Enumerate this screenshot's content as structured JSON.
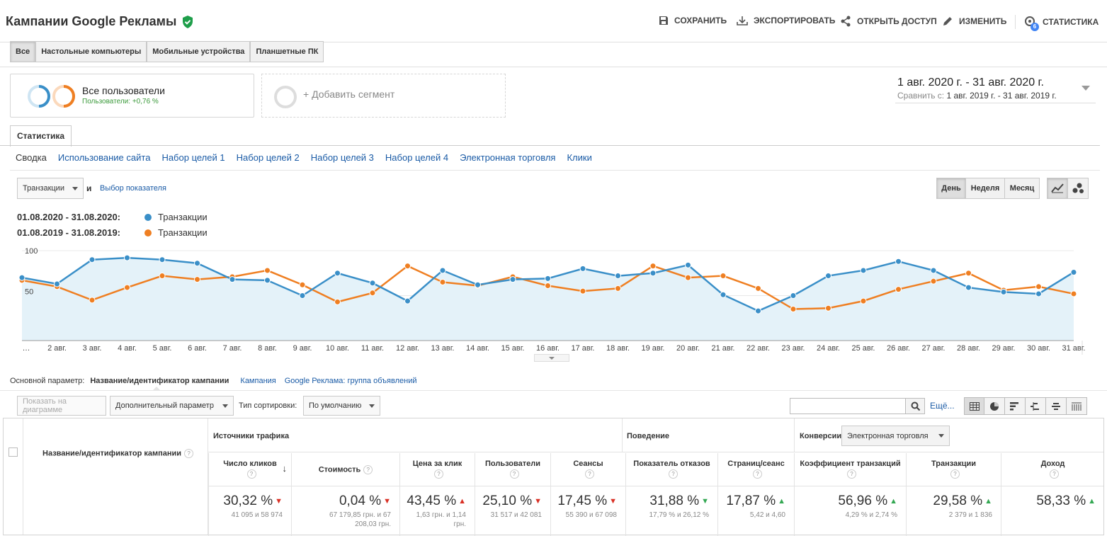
{
  "header": {
    "title": "Кампании Google Рекламы",
    "save": "Сохранить",
    "export": "Экспортировать",
    "share": "Открыть доступ",
    "edit": "Изменить",
    "stats": "Статистика",
    "stats_badge": "6"
  },
  "devices": [
    "Все",
    "Настольные компьютеры",
    "Мобильные устройства",
    "Планшетные ПК"
  ],
  "segment": {
    "name": "Все пользователи",
    "sub": "Пользователи: +0,76 %",
    "add": "+ Добавить сегмент"
  },
  "dates": {
    "range": "1 авг. 2020 г. - 31 авг. 2020 г.",
    "compare_label": "Сравнить с:",
    "compare": "1 авг. 2019 г. - 31 авг. 2019 г."
  },
  "tab": "Статистика",
  "subnav": [
    "Сводка",
    "Использование сайта",
    "Набор целей 1",
    "Набор целей 2",
    "Набор целей 3",
    "Набор целей 4",
    "Электронная торговля",
    "Клики"
  ],
  "metric": {
    "selected": "Транзакции",
    "and": "и",
    "choose": "Выбор показателя"
  },
  "granularity": [
    "День",
    "Неделя",
    "Месяц"
  ],
  "legend": [
    {
      "period": "01.08.2020 - 31.08.2020:",
      "name": "Транзакции",
      "color": "#3a8fc8"
    },
    {
      "period": "01.08.2019 - 31.08.2019:",
      "name": "Транзакции",
      "color": "#ef7f22"
    }
  ],
  "chart_data": {
    "type": "line",
    "ylim": [
      0,
      100
    ],
    "yticks": [
      "100",
      "50"
    ],
    "categories": [
      "…",
      "2 авг.",
      "3 авг.",
      "4 авг.",
      "5 авг.",
      "6 авг.",
      "7 авг.",
      "8 авг.",
      "9 авг.",
      "10 авг.",
      "11 авг.",
      "12 авг.",
      "13 авг.",
      "14 авг.",
      "15 авг.",
      "16 авг.",
      "17 авг.",
      "18 авг.",
      "19 авг.",
      "20 авг.",
      "21 авг.",
      "22 авг.",
      "23 авг.",
      "24 авг.",
      "25 авг.",
      "26 авг.",
      "27 авг.",
      "28 авг.",
      "29 авг.",
      "30 авг.",
      "31 авг."
    ],
    "series": [
      {
        "name": "Транзакции 2020",
        "values": [
          70,
          63,
          90,
          92,
          90,
          86,
          68,
          67,
          50,
          75,
          64,
          44,
          78,
          62,
          68,
          69,
          80,
          72,
          75,
          84,
          51,
          33,
          50,
          72,
          78,
          88,
          78,
          59,
          54,
          52,
          76
        ]
      },
      {
        "name": "Транзакции 2019",
        "values": [
          67,
          60,
          45,
          59,
          72,
          68,
          71,
          78,
          62,
          43,
          53,
          83,
          65,
          61,
          71,
          61,
          55,
          58,
          83,
          70,
          72,
          58,
          35,
          36,
          44,
          57,
          66,
          75,
          56,
          60,
          52
        ]
      }
    ]
  },
  "dimension": {
    "label": "Основной параметр:",
    "current": "Название/идентификатор кампании",
    "opt1": "Кампания",
    "opt2": "Google Реклама: группа объявлений"
  },
  "controls": {
    "plot": "Показать на диаграмме",
    "secondary": "Дополнительный параметр",
    "sort_label": "Тип сортировки:",
    "sort": "По умолчанию",
    "more": "Ещё..."
  },
  "table": {
    "col_name": "Название/идентификатор кампании",
    "g_traffic": "Источники трафика",
    "g_behavior": "Поведение",
    "g_conv": "Конверсии",
    "conv_select": "Электронная торговля",
    "columns": [
      {
        "h": "Число кликов",
        "v": "30,32 %",
        "d": "down",
        "s": "41 095 и 58 974"
      },
      {
        "h": "Стоимость",
        "v": "0,04 %",
        "d": "down",
        "s": "67 179,85 грн. и 67 208,03 грн."
      },
      {
        "h": "Цена за клик",
        "v": "43,45 %",
        "d": "upred",
        "s": "1,63 грн. и 1,14 грн."
      },
      {
        "h": "Пользователи",
        "v": "25,10 %",
        "d": "down",
        "s": "31 517 и 42 081"
      },
      {
        "h": "Сеансы",
        "v": "17,45 %",
        "d": "down",
        "s": "55 390 и 67 098"
      },
      {
        "h": "Показатель отказов",
        "v": "31,88 %",
        "d": "downgreen",
        "s": "17,79 % и 26,12 %"
      },
      {
        "h": "Страниц/сеанс",
        "v": "17,87 %",
        "d": "up",
        "s": "5,42 и 4,60"
      },
      {
        "h": "Коэффициент транзакций",
        "v": "56,96 %",
        "d": "up",
        "s": "4,29 % и 2,74 %"
      },
      {
        "h": "Транзакции",
        "v": "29,58 %",
        "d": "up",
        "s": "2 379 и 1 836"
      },
      {
        "h": "Доход",
        "v": "58,33 %",
        "d": "up",
        "s": ""
      }
    ]
  }
}
